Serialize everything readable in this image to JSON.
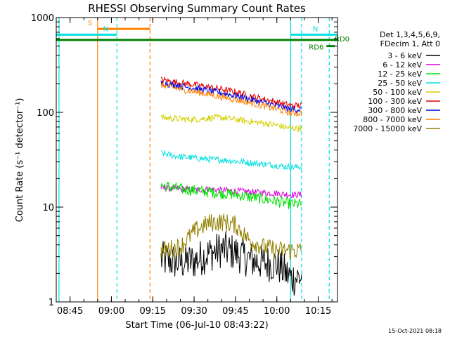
{
  "chart_data": {
    "type": "line",
    "title": "RHESSI Observing Summary Count Rates",
    "xlabel": "Start Time (06-Jul-10 08:43:22)",
    "ylabel": "Count Rate (s⁻¹ detector⁻¹)",
    "ylog": true,
    "ylim": [
      1,
      1000
    ],
    "xlim": [
      "08:40",
      "10:22"
    ],
    "x_ticks": [
      "08:45",
      "09:00",
      "09:15",
      "09:30",
      "09:45",
      "10:00",
      "10:15"
    ],
    "y_ticks": [
      "1",
      "10",
      "100",
      "1000"
    ],
    "legend_header": [
      "Det 1,3,4,5,6,9,",
      "FDecim 1, Att 0"
    ],
    "legend_position": "right",
    "grid": false,
    "series": [
      {
        "name": "3 - 6 keV",
        "color": "#000000",
        "time": [
          "09:18",
          "09:25",
          "09:30",
          "09:35",
          "09:40",
          "09:45",
          "09:50",
          "09:55",
          "10:00",
          "10:05"
        ],
        "values": [
          2.8,
          2.6,
          2.7,
          3.2,
          3.6,
          3.3,
          2.8,
          2.6,
          2.5,
          1.8
        ]
      },
      {
        "name": "6 - 12 keV",
        "color": "#e000e0",
        "time": [
          "09:18",
          "09:25",
          "09:30",
          "09:35",
          "09:40",
          "09:45",
          "09:50",
          "09:55",
          "10:00",
          "10:05"
        ],
        "values": [
          16,
          15.5,
          15.2,
          15.5,
          15,
          14.8,
          14.5,
          14.2,
          14,
          13.5
        ]
      },
      {
        "name": "12 - 25 keV",
        "color": "#00e000",
        "time": [
          "09:18",
          "09:25",
          "09:30",
          "09:35",
          "09:40",
          "09:45",
          "09:50",
          "09:55",
          "10:00",
          "10:05"
        ],
        "values": [
          17,
          15.5,
          15,
          14.5,
          14,
          13.5,
          12.8,
          12.2,
          11.5,
          10.8
        ]
      },
      {
        "name": "25 - 50 keV",
        "color": "#00e0e0",
        "time": [
          "09:18",
          "09:25",
          "09:30",
          "09:35",
          "09:40",
          "09:45",
          "09:50",
          "09:55",
          "10:00",
          "10:05"
        ],
        "values": [
          37,
          34,
          33,
          32,
          31.5,
          30.5,
          29.5,
          28.5,
          27.5,
          26.5
        ]
      },
      {
        "name": "50 - 100 keV",
        "color": "#d0d000",
        "time": [
          "09:18",
          "09:25",
          "09:30",
          "09:35",
          "09:40",
          "09:45",
          "09:50",
          "09:55",
          "10:00",
          "10:05"
        ],
        "values": [
          88,
          85,
          84,
          87,
          88,
          84,
          80,
          77,
          73,
          68
        ]
      },
      {
        "name": "100 - 300 keV",
        "color": "#e00000",
        "time": [
          "09:18",
          "09:25",
          "09:30",
          "09:35",
          "09:40",
          "09:45",
          "09:50",
          "09:55",
          "10:00",
          "10:05"
        ],
        "values": [
          220,
          205,
          195,
          185,
          175,
          165,
          150,
          138,
          128,
          118
        ]
      },
      {
        "name": "300 - 800 keV",
        "color": "#0000e0",
        "time": [
          "09:18",
          "09:25",
          "09:30",
          "09:35",
          "09:40",
          "09:45",
          "09:50",
          "09:55",
          "10:00",
          "10:05"
        ],
        "values": [
          205,
          190,
          180,
          170,
          160,
          150,
          138,
          127,
          117,
          107
        ]
      },
      {
        "name": "800 - 7000 keV",
        "color": "#ff8000",
        "time": [
          "09:18",
          "09:25",
          "09:30",
          "09:35",
          "09:40",
          "09:45",
          "09:50",
          "09:55",
          "10:00",
          "10:05"
        ],
        "values": [
          195,
          175,
          165,
          155,
          145,
          136,
          127,
          117,
          108,
          98
        ]
      },
      {
        "name": "7000 - 15000 keV",
        "color": "#908000",
        "time": [
          "09:18",
          "09:25",
          "09:30",
          "09:35",
          "09:40",
          "09:45",
          "09:50",
          "09:55",
          "10:00",
          "10:05"
        ],
        "values": [
          3.5,
          3.8,
          5.5,
          6.8,
          7.0,
          6.5,
          4.5,
          3.8,
          3.5,
          3.5
        ]
      }
    ],
    "annotations": [
      {
        "label": "S",
        "color": "#ff8000",
        "start": "08:55",
        "end": "09:14",
        "level": 760
      },
      {
        "label": "N",
        "color": "#00e0e0",
        "start": "08:40",
        "end": "09:02",
        "level": 660
      },
      {
        "label": "N",
        "color": "#00e0e0",
        "start": "10:05",
        "end": "10:22",
        "level": 660
      },
      {
        "label": "RD0",
        "color": "#008000",
        "start": "08:40",
        "end": "10:22",
        "level": 580
      },
      {
        "label": "RD6",
        "color": "#008000",
        "start": "10:18",
        "end": "10:21",
        "level": 500
      }
    ],
    "vertical_lines": [
      {
        "time": "08:41",
        "color": "#00e0e0",
        "style": "solid"
      },
      {
        "time": "08:55",
        "color": "#ff8000",
        "style": "solid"
      },
      {
        "time": "09:02",
        "color": "#00e0e0",
        "style": "dashed"
      },
      {
        "time": "09:14",
        "color": "#ff8000",
        "style": "dashed"
      },
      {
        "time": "10:05",
        "color": "#00e0e0",
        "style": "solid"
      },
      {
        "time": "10:09",
        "color": "#00e0e0",
        "style": "dashed"
      },
      {
        "time": "10:19",
        "color": "#00e0e0",
        "style": "dashed"
      }
    ],
    "data_window": [
      "09:18",
      "10:09"
    ],
    "timestamp": "15-Oct-2021 08:18"
  }
}
